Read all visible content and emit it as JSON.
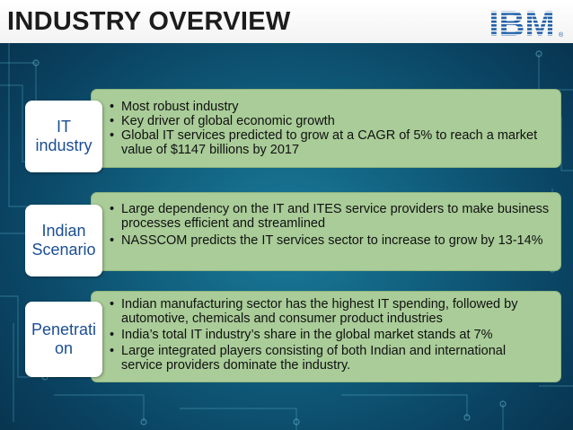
{
  "title": "INDUSTRY OVERVIEW",
  "logo": "IBM",
  "logo_mark": "®",
  "rows": [
    {
      "label": "IT industry",
      "bullets": [
        "Most robust industry",
        "Key driver of global economic growth",
        "Global IT services predicted to grow at a CAGR of 5% to reach a market value of $1147 billions by 2017"
      ]
    },
    {
      "label": "Indian Scenario",
      "bullets": [
        "Large dependency on the IT and ITES service providers to make business processes efficient and streamlined",
        "NASSCOM predicts the IT services sector to increase  to grow by 13-14%"
      ]
    },
    {
      "label": "Penetration",
      "bullets": [
        "Indian manufacturing sector has the highest IT spending,  followed by automotive, chemicals and consumer product industries",
        "India’s total IT industry’s share in the global market stands at 7%",
        "Large integrated players consisting of both Indian and international service providers dominate the industry."
      ]
    }
  ]
}
